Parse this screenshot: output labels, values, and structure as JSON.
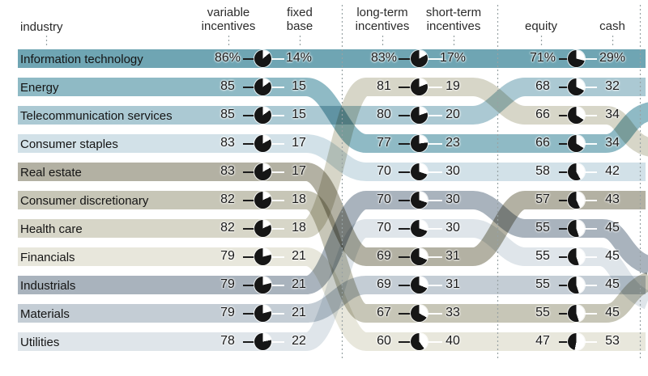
{
  "header": {
    "industry_label": "industry",
    "column_labels": [
      "variable\nincentives",
      "fixed\nbase",
      "long-term\nincentives",
      "short-term\nincentives",
      "equity",
      "cash"
    ]
  },
  "chart_data": {
    "type": "table",
    "columns": [
      "industry",
      "variable incentives",
      "fixed base",
      "long-term incentives",
      "short-term incentives",
      "equity",
      "cash"
    ],
    "pie_color": "#161616",
    "rows": [
      {
        "industry": "Information technology",
        "variable": 86,
        "fixed": 14,
        "long_term": 83,
        "short_term": 17,
        "equity": 71,
        "cash": 29,
        "color": "#6fa5b3",
        "mid_rank": 1,
        "right_rank": 1
      },
      {
        "industry": "Energy",
        "variable": 85,
        "fixed": 15,
        "long_term": 77,
        "short_term": 23,
        "equity": 66,
        "cash": 34,
        "color": "#8fbac5",
        "mid_rank": 4,
        "right_rank": 4
      },
      {
        "industry": "Telecommunication services",
        "variable": 85,
        "fixed": 15,
        "long_term": 80,
        "short_term": 20,
        "equity": 68,
        "cash": 32,
        "color": "#abc9d3",
        "mid_rank": 3,
        "right_rank": 2
      },
      {
        "industry": "Consumer staples",
        "variable": 83,
        "fixed": 17,
        "long_term": 70,
        "short_term": 30,
        "equity": 58,
        "cash": 42,
        "color": "#d2e1e8",
        "mid_rank": 5,
        "right_rank": 5
      },
      {
        "industry": "Real estate",
        "variable": 83,
        "fixed": 17,
        "long_term": 69,
        "short_term": 31,
        "equity": 57,
        "cash": 43,
        "color": "#b3b1a3",
        "mid_rank": 8,
        "right_rank": 6
      },
      {
        "industry": "Consumer discretionary",
        "variable": 82,
        "fixed": 18,
        "long_term": 67,
        "short_term": 33,
        "equity": 55,
        "cash": 45,
        "color": "#c7c6b7",
        "mid_rank": 10,
        "right_rank": 10
      },
      {
        "industry": "Health care",
        "variable": 82,
        "fixed": 18,
        "long_term": 81,
        "short_term": 19,
        "equity": 66,
        "cash": 34,
        "color": "#d7d6c8",
        "mid_rank": 2,
        "right_rank": 3
      },
      {
        "industry": "Financials",
        "variable": 79,
        "fixed": 21,
        "long_term": 60,
        "short_term": 40,
        "equity": 47,
        "cash": 53,
        "color": "#e8e7dc",
        "mid_rank": 11,
        "right_rank": 11
      },
      {
        "industry": "Industrials",
        "variable": 79,
        "fixed": 21,
        "long_term": 70,
        "short_term": 30,
        "equity": 55,
        "cash": 45,
        "color": "#a9b3bd",
        "mid_rank": 6,
        "right_rank": 7
      },
      {
        "industry": "Materials",
        "variable": 79,
        "fixed": 21,
        "long_term": 69,
        "short_term": 31,
        "equity": 55,
        "cash": 45,
        "color": "#c4cdd5",
        "mid_rank": 9,
        "right_rank": 9
      },
      {
        "industry": "Utilities",
        "variable": 78,
        "fixed": 22,
        "long_term": 70,
        "short_term": 30,
        "equity": 55,
        "cash": 45,
        "color": "#dfe5ea",
        "mid_rank": 7,
        "right_rank": 8
      }
    ]
  }
}
